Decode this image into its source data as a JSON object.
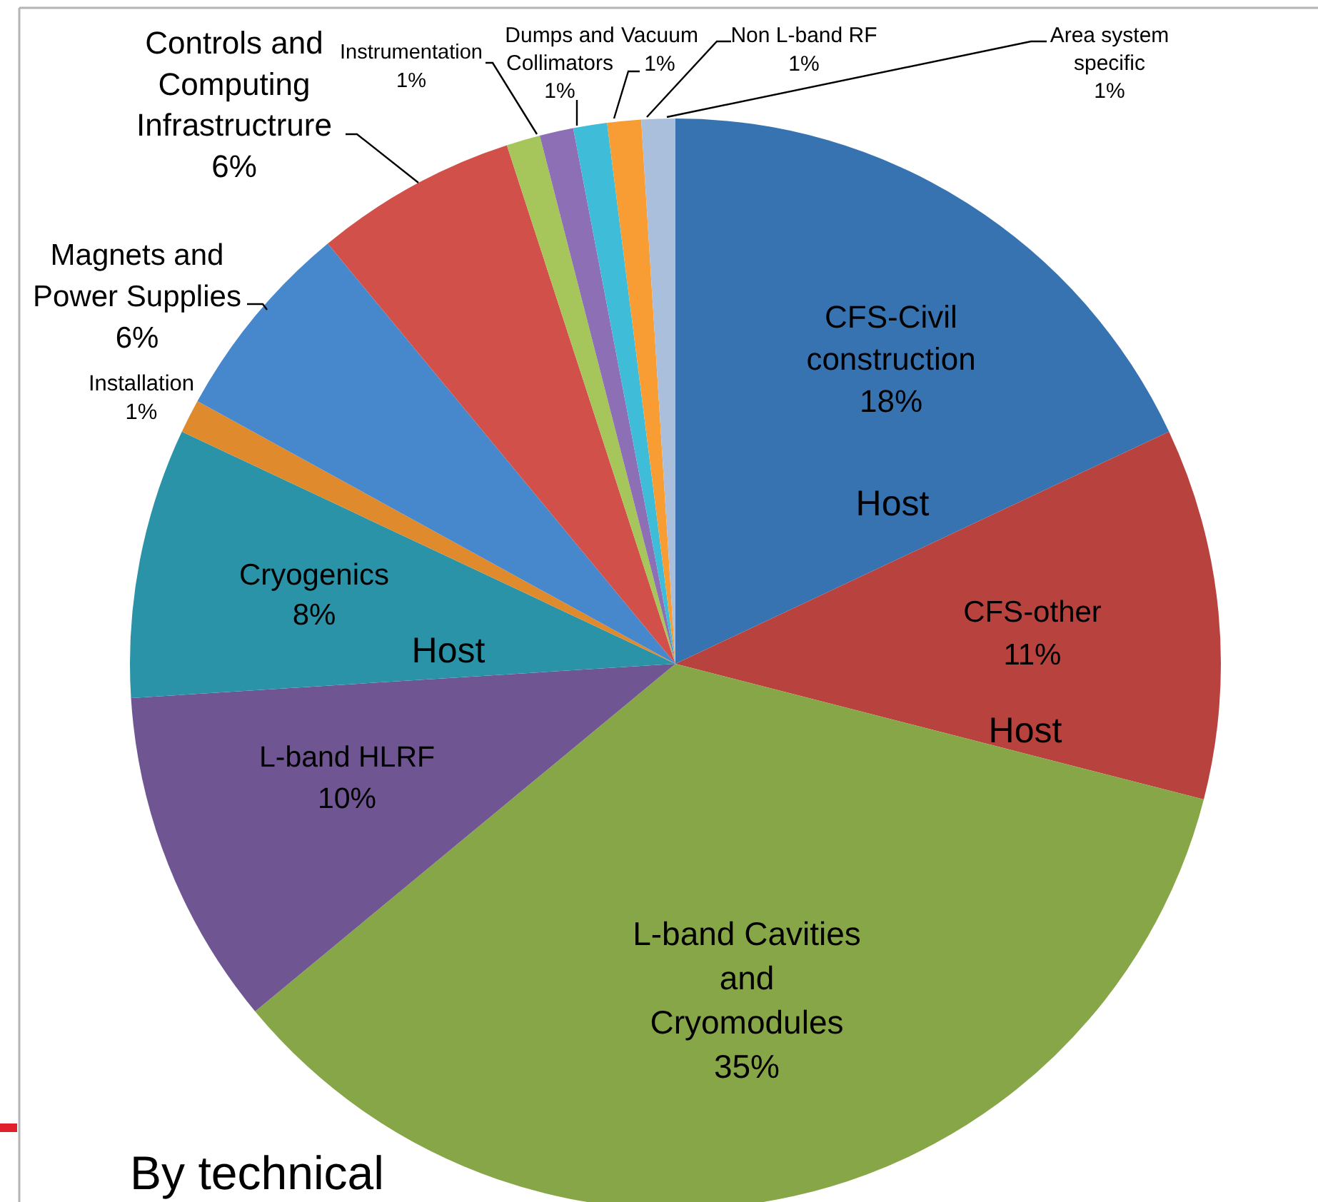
{
  "chart_data": {
    "type": "pie",
    "title": "By technical",
    "categories": [
      "CFS-Civil construction",
      "CFS-other",
      "L-band Cavities and Cryomodules",
      "L-band HLRF",
      "Cryogenics",
      "Installation",
      "Magnets and Power Supplies",
      "Controls and Computing Infrastructrure",
      "Instrumentation",
      "Dumps and Collimators",
      "Vacuum",
      "Non L-band RF",
      "Area system specific"
    ],
    "values": [
      18,
      11,
      35,
      10,
      8,
      1,
      6,
      6,
      1,
      1,
      1,
      1,
      1
    ],
    "value_labels": [
      "18%",
      "11%",
      "35%",
      "10%",
      "8%",
      "1%",
      "6%",
      "6%",
      "1%",
      "1%",
      "1%",
      "1%",
      "1%"
    ],
    "colors": [
      "#3873b1",
      "#b8433e",
      "#87a647",
      "#705593",
      "#2a93a8",
      "#e08a2e",
      "#4788cc",
      "#d2504a",
      "#a6c55a",
      "#8d6fb5",
      "#3ebcd8",
      "#f79d33",
      "#a9bfdc"
    ],
    "annotations": [
      "Host",
      "Host",
      "Host"
    ]
  }
}
